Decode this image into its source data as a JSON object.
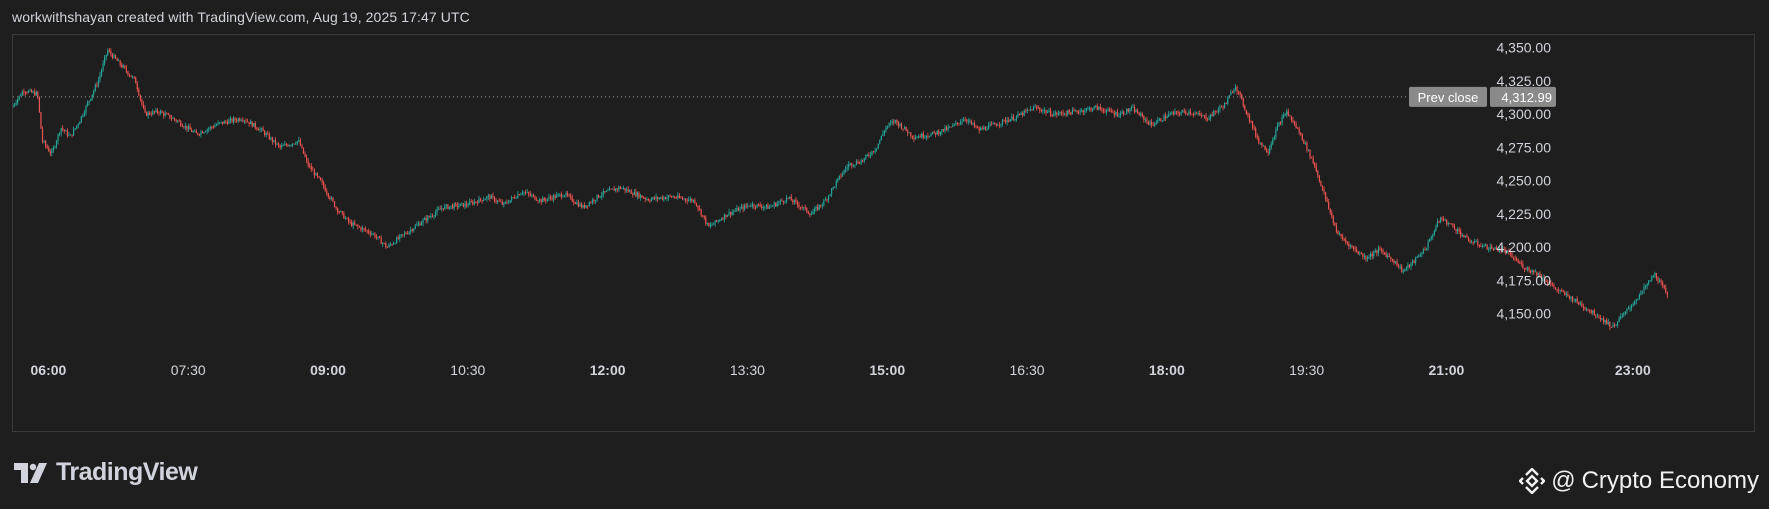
{
  "header": {
    "caption": "workwithshayan created with TradingView.com, Aug 19, 2025 17:47 UTC"
  },
  "branding": {
    "logo_text": "TradingView",
    "logo_icon": "tradingview-logo-icon",
    "watermark_text": "Crypto Economy",
    "watermark_at": "@",
    "watermark_icon": "binance-diamond-icon"
  },
  "colors": {
    "up": "#26a69a",
    "down": "#ef5350",
    "background": "#1e1e1e",
    "text": "#d1d4dc",
    "prev_close_label_bg": "#8a8a8a"
  },
  "chart_data": {
    "type": "candlestick",
    "title": "",
    "xlabel": "",
    "ylabel": "",
    "x_ticks": [
      {
        "label": "06:00",
        "t": 6.0,
        "bold": true
      },
      {
        "label": "07:30",
        "t": 7.5,
        "bold": false
      },
      {
        "label": "09:00",
        "t": 9.0,
        "bold": true
      },
      {
        "label": "10:30",
        "t": 10.5,
        "bold": false
      },
      {
        "label": "12:00",
        "t": 12.0,
        "bold": true
      },
      {
        "label": "13:30",
        "t": 13.5,
        "bold": false
      },
      {
        "label": "15:00",
        "t": 15.0,
        "bold": true
      },
      {
        "label": "16:30",
        "t": 16.5,
        "bold": false
      },
      {
        "label": "18:00",
        "t": 18.0,
        "bold": true
      },
      {
        "label": "19:30",
        "t": 19.5,
        "bold": false
      },
      {
        "label": "21:00",
        "t": 21.0,
        "bold": true
      },
      {
        "label": "23:00",
        "t": 23.0,
        "bold": true
      }
    ],
    "y_ticks": [
      "4,350.00",
      "4,325.00",
      "4,300.00",
      "4,275.00",
      "4,250.00",
      "4,225.00",
      "4,200.00",
      "4,175.00",
      "4,150.00"
    ],
    "y_tick_values": [
      4350,
      4325,
      4300,
      4275,
      4250,
      4225,
      4200,
      4175,
      4150
    ],
    "ylim": [
      4128,
      4355
    ],
    "xlim": [
      5.62,
      24.3
    ],
    "prev_close": {
      "label": "Prev close",
      "value_label": "4,312.99",
      "value": 4312.99
    },
    "series": {
      "start_t": 5.62,
      "end_t": 23.38,
      "path": [
        [
          5.62,
          4305
        ],
        [
          5.75,
          4318
        ],
        [
          5.9,
          4315
        ],
        [
          5.95,
          4280
        ],
        [
          6.05,
          4270
        ],
        [
          6.15,
          4290
        ],
        [
          6.25,
          4283
        ],
        [
          6.35,
          4295
        ],
        [
          6.55,
          4325
        ],
        [
          6.65,
          4348
        ],
        [
          6.78,
          4338
        ],
        [
          6.95,
          4325
        ],
        [
          7.05,
          4300
        ],
        [
          7.2,
          4302
        ],
        [
          7.4,
          4295
        ],
        [
          7.6,
          4285
        ],
        [
          7.85,
          4293
        ],
        [
          8.1,
          4297
        ],
        [
          8.3,
          4288
        ],
        [
          8.5,
          4275
        ],
        [
          8.7,
          4280
        ],
        [
          8.8,
          4262
        ],
        [
          8.95,
          4248
        ],
        [
          9.1,
          4230
        ],
        [
          9.25,
          4218
        ],
        [
          9.5,
          4210
        ],
        [
          9.65,
          4200
        ],
        [
          9.8,
          4208
        ],
        [
          10.0,
          4218
        ],
        [
          10.25,
          4230
        ],
        [
          10.5,
          4232
        ],
        [
          10.75,
          4238
        ],
        [
          10.9,
          4232
        ],
        [
          11.1,
          4242
        ],
        [
          11.3,
          4235
        ],
        [
          11.55,
          4240
        ],
        [
          11.75,
          4230
        ],
        [
          11.95,
          4240
        ],
        [
          12.15,
          4245
        ],
        [
          12.45,
          4236
        ],
        [
          12.7,
          4238
        ],
        [
          12.95,
          4235
        ],
        [
          13.1,
          4215
        ],
        [
          13.3,
          4225
        ],
        [
          13.55,
          4232
        ],
        [
          13.75,
          4230
        ],
        [
          13.95,
          4237
        ],
        [
          14.1,
          4230
        ],
        [
          14.2,
          4225
        ],
        [
          14.35,
          4235
        ],
        [
          14.5,
          4252
        ],
        [
          14.6,
          4262
        ],
        [
          14.75,
          4265
        ],
        [
          14.9,
          4275
        ],
        [
          15.0,
          4290
        ],
        [
          15.1,
          4295
        ],
        [
          15.3,
          4283
        ],
        [
          15.5,
          4285
        ],
        [
          15.7,
          4290
        ],
        [
          15.85,
          4297
        ],
        [
          16.0,
          4288
        ],
        [
          16.2,
          4293
        ],
        [
          16.4,
          4298
        ],
        [
          16.6,
          4305
        ],
        [
          16.8,
          4300
        ],
        [
          17.05,
          4302
        ],
        [
          17.25,
          4305
        ],
        [
          17.5,
          4300
        ],
        [
          17.65,
          4304
        ],
        [
          17.85,
          4292
        ],
        [
          18.05,
          4300
        ],
        [
          18.25,
          4302
        ],
        [
          18.45,
          4297
        ],
        [
          18.65,
          4308
        ],
        [
          18.75,
          4322
        ],
        [
          18.85,
          4305
        ],
        [
          19.0,
          4280
        ],
        [
          19.1,
          4272
        ],
        [
          19.2,
          4290
        ],
        [
          19.3,
          4302
        ],
        [
          19.45,
          4285
        ],
        [
          19.6,
          4262
        ],
        [
          19.75,
          4230
        ],
        [
          19.85,
          4210
        ],
        [
          20.0,
          4200
        ],
        [
          20.15,
          4192
        ],
        [
          20.3,
          4198
        ],
        [
          20.45,
          4190
        ],
        [
          20.55,
          4182
        ],
        [
          20.65,
          4188
        ],
        [
          20.8,
          4200
        ],
        [
          20.95,
          4222
        ],
        [
          21.1,
          4215
        ],
        [
          21.25,
          4205
        ],
        [
          21.45,
          4200
        ],
        [
          21.65,
          4197
        ],
        [
          21.85,
          4185
        ],
        [
          22.0,
          4180
        ],
        [
          22.2,
          4168
        ],
        [
          22.35,
          4162
        ],
        [
          22.5,
          4155
        ],
        [
          22.65,
          4148
        ],
        [
          22.8,
          4140
        ],
        [
          22.95,
          4152
        ],
        [
          23.1,
          4165
        ],
        [
          23.25,
          4180
        ],
        [
          23.38,
          4165
        ]
      ]
    }
  }
}
